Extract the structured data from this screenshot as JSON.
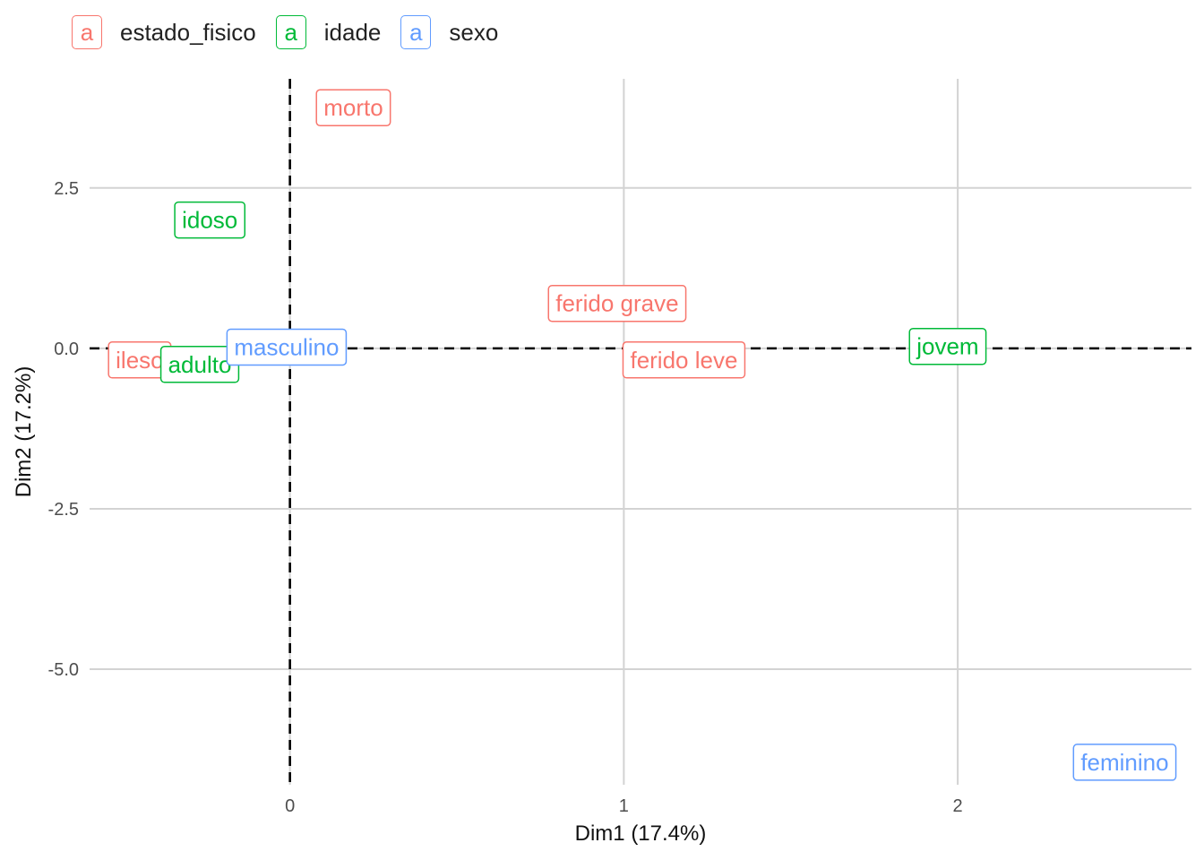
{
  "legend": {
    "key_glyph": "a",
    "items": [
      {
        "label": "estado_fisico",
        "color": "#F8766D"
      },
      {
        "label": "idade",
        "color": "#00BA38"
      },
      {
        "label": "sexo",
        "color": "#619CFF"
      }
    ]
  },
  "chart_data": {
    "type": "scatter",
    "xlabel": "Dim1 (17.4%)",
    "ylabel": "Dim2 (17.2%)",
    "xlim": [
      -0.6,
      2.7
    ],
    "ylim": [
      -6.8,
      4.2
    ],
    "x_ticks": [
      0,
      1,
      2
    ],
    "x_tick_labels": [
      "0",
      "1",
      "2"
    ],
    "y_ticks": [
      2.5,
      0.0,
      -2.5,
      -5.0
    ],
    "y_tick_labels": [
      "2.5",
      "0.0",
      "-2.5",
      "-5.0"
    ],
    "grid": true,
    "reference_lines": {
      "x": 0,
      "y": 0,
      "style": "dashed"
    },
    "legend_position": "top",
    "series": [
      {
        "name": "estado_fisico",
        "color": "#F8766D",
        "points": [
          {
            "label": "morto",
            "x": 0.19,
            "y": 3.75
          },
          {
            "label": "ferido grave",
            "x": 0.98,
            "y": 0.7
          },
          {
            "label": "ferido leve",
            "x": 1.18,
            "y": -0.18
          },
          {
            "label": "ileso",
            "x": -0.45,
            "y": -0.18
          }
        ]
      },
      {
        "name": "idade",
        "color": "#00BA38",
        "points": [
          {
            "label": "idoso",
            "x": -0.24,
            "y": 2.0
          },
          {
            "label": "adulto",
            "x": -0.27,
            "y": -0.25
          },
          {
            "label": "jovem",
            "x": 1.97,
            "y": 0.03
          }
        ]
      },
      {
        "name": "sexo",
        "color": "#619CFF",
        "points": [
          {
            "label": "masculino",
            "x": -0.01,
            "y": 0.02
          },
          {
            "label": "feminino",
            "x": 2.5,
            "y": -6.45
          }
        ]
      }
    ]
  }
}
